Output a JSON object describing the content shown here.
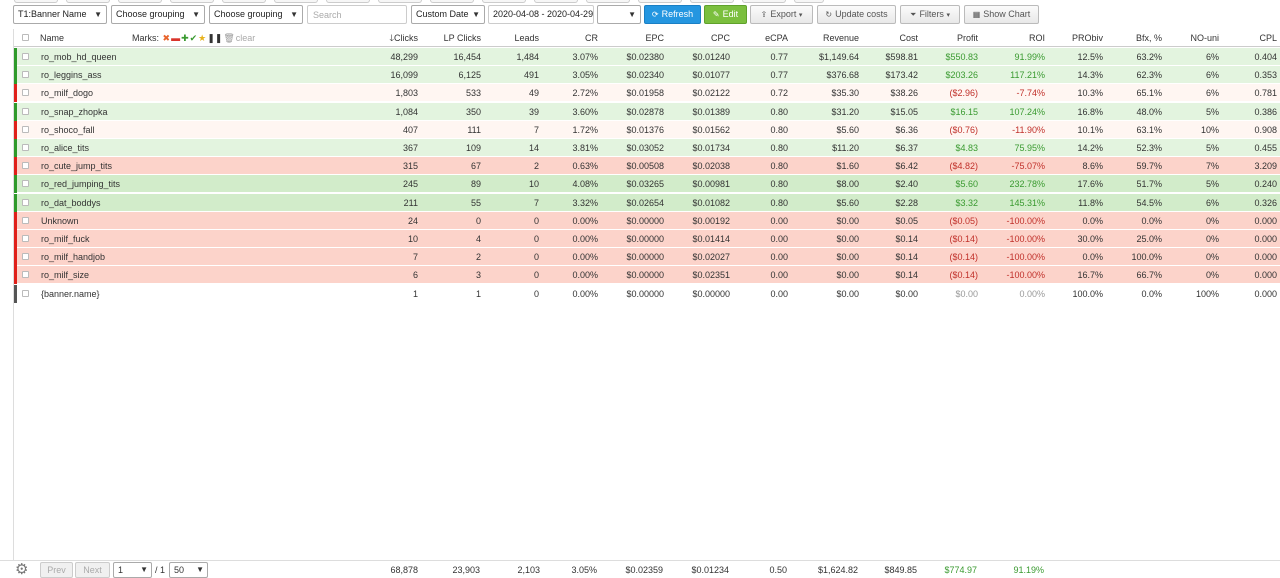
{
  "toolbar": {
    "grouping1": "T1:Banner Name",
    "grouping2": "Choose grouping",
    "grouping3": "Choose grouping",
    "search_placeholder": "Search",
    "date_mode": "Custom Date",
    "date_range": "2020-04-08 - 2020-04-29",
    "extra_select": "",
    "refresh": "Refresh",
    "edit": "Edit",
    "export": "Export",
    "update_costs": "Update costs",
    "filters": "Filters",
    "show_chart": "Show Chart"
  },
  "columns": {
    "name": "Name",
    "marks": "Marks:",
    "clear": "clear",
    "clicks": "Clicks",
    "lp_clicks": "LP Clicks",
    "leads": "Leads",
    "cr": "CR",
    "epc": "EPC",
    "cpc": "CPC",
    "ecpa": "eCPA",
    "revenue": "Revenue",
    "cost": "Cost",
    "profit": "Profit",
    "roi": "ROI",
    "probiv": "PRObiv",
    "bfx": "Bfx, %",
    "no_uni": "NO-uni",
    "cpl": "CPL"
  },
  "colors": {
    "green_row": "#e3f4df",
    "green_row_strong": "#d2ecca",
    "red_row": "#fcd3ca",
    "pale_row": "#fff6f2",
    "strip_green": "#2e9a2a",
    "strip_red": "#e0201a",
    "strip_gray": "#555555"
  },
  "rows": [
    {
      "name": "ro_mob_hd_queen",
      "clicks": "48,299",
      "lp": "16,454",
      "leads": "1,484",
      "cr": "3.07%",
      "epc": "$0.02380",
      "cpc": "$0.01240",
      "ecpa": "0.77",
      "rev": "$1,149.64",
      "cost": "$598.81",
      "profit": "$550.83",
      "roi": "91.99%",
      "probiv": "12.5%",
      "bfx": "63.2%",
      "nouni": "6%",
      "cpl": "0.404",
      "bg": "green_row",
      "strip": "strip_green",
      "sign": "pos"
    },
    {
      "name": "ro_leggins_ass",
      "clicks": "16,099",
      "lp": "6,125",
      "leads": "491",
      "cr": "3.05%",
      "epc": "$0.02340",
      "cpc": "$0.01077",
      "ecpa": "0.77",
      "rev": "$376.68",
      "cost": "$173.42",
      "profit": "$203.26",
      "roi": "117.21%",
      "probiv": "14.3%",
      "bfx": "62.3%",
      "nouni": "6%",
      "cpl": "0.353",
      "bg": "green_row",
      "strip": "strip_green",
      "sign": "pos"
    },
    {
      "name": "ro_milf_dogo",
      "clicks": "1,803",
      "lp": "533",
      "leads": "49",
      "cr": "2.72%",
      "epc": "$0.01958",
      "cpc": "$0.02122",
      "ecpa": "0.72",
      "rev": "$35.30",
      "cost": "$38.26",
      "profit": "($2.96)",
      "roi": "-7.74%",
      "probiv": "10.3%",
      "bfx": "65.1%",
      "nouni": "6%",
      "cpl": "0.781",
      "bg": "pale_row",
      "strip": "strip_red",
      "sign": "neg"
    },
    {
      "name": "ro_snap_zhopka",
      "clicks": "1,084",
      "lp": "350",
      "leads": "39",
      "cr": "3.60%",
      "epc": "$0.02878",
      "cpc": "$0.01389",
      "ecpa": "0.80",
      "rev": "$31.20",
      "cost": "$15.05",
      "profit": "$16.15",
      "roi": "107.24%",
      "probiv": "16.8%",
      "bfx": "48.0%",
      "nouni": "5%",
      "cpl": "0.386",
      "bg": "green_row",
      "strip": "strip_green",
      "sign": "pos"
    },
    {
      "name": "ro_shoco_fall",
      "clicks": "407",
      "lp": "111",
      "leads": "7",
      "cr": "1.72%",
      "epc": "$0.01376",
      "cpc": "$0.01562",
      "ecpa": "0.80",
      "rev": "$5.60",
      "cost": "$6.36",
      "profit": "($0.76)",
      "roi": "-11.90%",
      "probiv": "10.1%",
      "bfx": "63.1%",
      "nouni": "10%",
      "cpl": "0.908",
      "bg": "pale_row",
      "strip": "strip_red",
      "sign": "neg"
    },
    {
      "name": "ro_alice_tits",
      "clicks": "367",
      "lp": "109",
      "leads": "14",
      "cr": "3.81%",
      "epc": "$0.03052",
      "cpc": "$0.01734",
      "ecpa": "0.80",
      "rev": "$11.20",
      "cost": "$6.37",
      "profit": "$4.83",
      "roi": "75.95%",
      "probiv": "14.2%",
      "bfx": "52.3%",
      "nouni": "5%",
      "cpl": "0.455",
      "bg": "green_row",
      "strip": "strip_green",
      "sign": "pos"
    },
    {
      "name": "ro_cute_jump_tits",
      "clicks": "315",
      "lp": "67",
      "leads": "2",
      "cr": "0.63%",
      "epc": "$0.00508",
      "cpc": "$0.02038",
      "ecpa": "0.80",
      "rev": "$1.60",
      "cost": "$6.42",
      "profit": "($4.82)",
      "roi": "-75.07%",
      "probiv": "8.6%",
      "bfx": "59.7%",
      "nouni": "7%",
      "cpl": "3.209",
      "bg": "red_row",
      "strip": "strip_red",
      "sign": "neg"
    },
    {
      "name": "ro_red_jumping_tits",
      "clicks": "245",
      "lp": "89",
      "leads": "10",
      "cr": "4.08%",
      "epc": "$0.03265",
      "cpc": "$0.00981",
      "ecpa": "0.80",
      "rev": "$8.00",
      "cost": "$2.40",
      "profit": "$5.60",
      "roi": "232.78%",
      "probiv": "17.6%",
      "bfx": "51.7%",
      "nouni": "5%",
      "cpl": "0.240",
      "bg": "green_row_strong",
      "strip": "strip_green",
      "sign": "pos"
    },
    {
      "name": "ro_dat_boddys",
      "clicks": "211",
      "lp": "55",
      "leads": "7",
      "cr": "3.32%",
      "epc": "$0.02654",
      "cpc": "$0.01082",
      "ecpa": "0.80",
      "rev": "$5.60",
      "cost": "$2.28",
      "profit": "$3.32",
      "roi": "145.31%",
      "probiv": "11.8%",
      "bfx": "54.5%",
      "nouni": "6%",
      "cpl": "0.326",
      "bg": "green_row_strong",
      "strip": "strip_green",
      "sign": "pos"
    },
    {
      "name": "Unknown",
      "clicks": "24",
      "lp": "0",
      "leads": "0",
      "cr": "0.00%",
      "epc": "$0.00000",
      "cpc": "$0.00192",
      "ecpa": "0.00",
      "rev": "$0.00",
      "cost": "$0.05",
      "profit": "($0.05)",
      "roi": "-100.00%",
      "probiv": "0.0%",
      "bfx": "0.0%",
      "nouni": "0%",
      "cpl": "0.000",
      "bg": "red_row",
      "strip": "strip_red",
      "sign": "neg"
    },
    {
      "name": "ro_milf_fuck",
      "clicks": "10",
      "lp": "4",
      "leads": "0",
      "cr": "0.00%",
      "epc": "$0.00000",
      "cpc": "$0.01414",
      "ecpa": "0.00",
      "rev": "$0.00",
      "cost": "$0.14",
      "profit": "($0.14)",
      "roi": "-100.00%",
      "probiv": "30.0%",
      "bfx": "25.0%",
      "nouni": "0%",
      "cpl": "0.000",
      "bg": "red_row",
      "strip": "strip_red",
      "sign": "neg"
    },
    {
      "name": "ro_milf_handjob",
      "clicks": "7",
      "lp": "2",
      "leads": "0",
      "cr": "0.00%",
      "epc": "$0.00000",
      "cpc": "$0.02027",
      "ecpa": "0.00",
      "rev": "$0.00",
      "cost": "$0.14",
      "profit": "($0.14)",
      "roi": "-100.00%",
      "probiv": "0.0%",
      "bfx": "100.0%",
      "nouni": "0%",
      "cpl": "0.000",
      "bg": "red_row",
      "strip": "strip_red",
      "sign": "neg"
    },
    {
      "name": "ro_milf_size",
      "clicks": "6",
      "lp": "3",
      "leads": "0",
      "cr": "0.00%",
      "epc": "$0.00000",
      "cpc": "$0.02351",
      "ecpa": "0.00",
      "rev": "$0.00",
      "cost": "$0.14",
      "profit": "($0.14)",
      "roi": "-100.00%",
      "probiv": "16.7%",
      "bfx": "66.7%",
      "nouni": "0%",
      "cpl": "0.000",
      "bg": "red_row",
      "strip": "strip_red",
      "sign": "neg"
    },
    {
      "name": "{banner.name}",
      "clicks": "1",
      "lp": "1",
      "leads": "0",
      "cr": "0.00%",
      "epc": "$0.00000",
      "cpc": "$0.00000",
      "ecpa": "0.00",
      "rev": "$0.00",
      "cost": "$0.00",
      "profit": "$0.00",
      "roi": "0.00%",
      "probiv": "100.0%",
      "bfx": "0.0%",
      "nouni": "100%",
      "cpl": "0.000",
      "bg": "white",
      "strip": "strip_gray",
      "sign": "muted"
    }
  ],
  "footer": {
    "prev": "Prev",
    "next": "Next",
    "page": "1",
    "page_total": "/ 1",
    "per_page": "50",
    "clicks": "68,878",
    "lp": "23,903",
    "leads": "2,103",
    "cr": "3.05%",
    "epc": "$0.02359",
    "cpc": "$0.01234",
    "ecpa": "0.50",
    "rev": "$1,624.82",
    "cost": "$849.85",
    "profit": "$774.97",
    "roi": "91.19%"
  }
}
